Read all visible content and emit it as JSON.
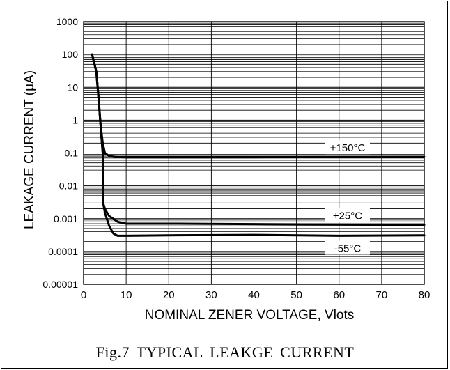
{
  "caption": "Fig.7 TYPICAL  LEAKGE  CURRENT",
  "chart_data": {
    "type": "line",
    "title": "",
    "xlabel": "NOMINAL ZENER VOLTAGE, Vlots",
    "ylabel": "LEAKAGE CURRENT (μA)",
    "xlim": [
      0,
      80
    ],
    "ylim": [
      1e-05,
      1000
    ],
    "yscale": "log",
    "grid": true,
    "x_ticks": [
      0,
      10,
      20,
      30,
      40,
      50,
      60,
      70,
      80
    ],
    "x_tick_labels": [
      "0",
      "10",
      "20",
      "30",
      "40",
      "50",
      "60",
      "70",
      "80"
    ],
    "y_ticks": [
      1e-05,
      0.0001,
      0.001,
      0.01,
      0.1,
      1,
      10,
      100,
      1000
    ],
    "y_tick_labels": [
      "0.00001",
      "0.0001",
      "0.001",
      "0.01",
      "0.1",
      "1",
      "10",
      "100",
      "1000"
    ],
    "line_color": "#000000",
    "series": [
      {
        "name": "+150°C",
        "x": [
          2,
          3,
          3.5,
          4,
          4.5,
          5,
          6,
          8,
          10,
          20,
          40,
          60,
          80
        ],
        "y": [
          100,
          30,
          5,
          0.7,
          0.2,
          0.1,
          0.08,
          0.075,
          0.073,
          0.073,
          0.074,
          0.075,
          0.076
        ]
      },
      {
        "name": "+25°C",
        "x": [
          2,
          3,
          3.5,
          4,
          4.3,
          4.5,
          4.6,
          5,
          6,
          8,
          10,
          20,
          40,
          60,
          80
        ],
        "y": [
          100,
          30,
          5,
          0.7,
          0.2,
          0.1,
          0.003,
          0.002,
          0.0012,
          0.0008,
          0.0007,
          0.0007,
          0.00068,
          0.00066,
          0.00065
        ]
      },
      {
        "name": "-55°C",
        "x": [
          2,
          3,
          3.5,
          4,
          4.3,
          4.5,
          4.6,
          5,
          6,
          7,
          8,
          10,
          20,
          40,
          60,
          80
        ],
        "y": [
          100,
          30,
          5,
          0.7,
          0.2,
          0.1,
          0.003,
          0.0015,
          0.0006,
          0.00035,
          0.0003,
          0.0003,
          0.00031,
          0.00032,
          0.0003,
          0.00031
        ]
      }
    ],
    "annotations": [
      {
        "text": "+150°C",
        "x": 62,
        "y": 0.15
      },
      {
        "text": "+25°C",
        "x": 62,
        "y": 0.0013
      },
      {
        "text": "-55°C",
        "x": 62,
        "y": 0.00013
      }
    ]
  }
}
